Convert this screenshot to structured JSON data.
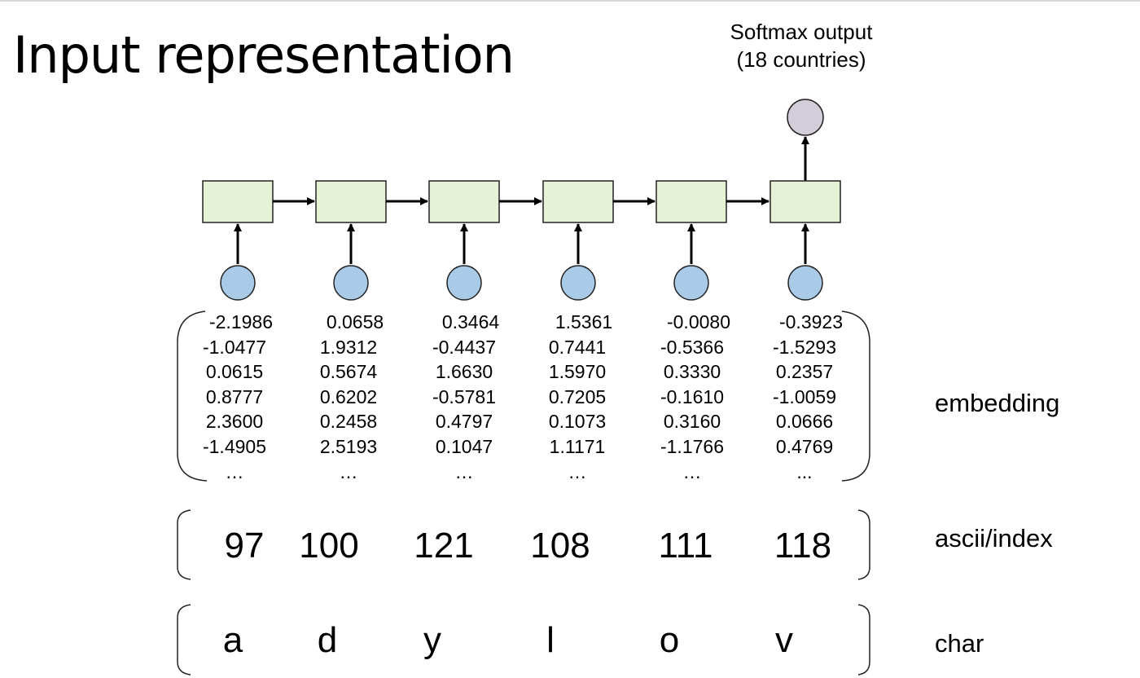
{
  "slide": {
    "title": "Input representation"
  },
  "output": {
    "label_line1": "Softmax output",
    "label_line2": "(18 countries)",
    "node_color": "#d2cdd9"
  },
  "colors": {
    "rnn_cell_fill": "#e5f2d6",
    "input_node_fill": "#a9cbe8"
  },
  "rows": {
    "embedding_label": "embedding",
    "ascii_label": "ascii/index",
    "char_label": "char"
  },
  "columns": [
    {
      "char": "a",
      "ascii": "97",
      "embedding": [
        "-2.1986",
        "-1.0477",
        "0.0615",
        "0.8777",
        "2.3600",
        "-1.4905",
        "…"
      ]
    },
    {
      "char": "d",
      "ascii": "100",
      "embedding": [
        "0.0658",
        "1.9312",
        "0.5674",
        "0.6202",
        "0.2458",
        "2.5193",
        "…"
      ]
    },
    {
      "char": "y",
      "ascii": "121",
      "embedding": [
        "0.3464",
        "-0.4437",
        "1.6630",
        "-0.5781",
        "0.4797",
        "0.1047",
        "…"
      ]
    },
    {
      "char": "l",
      "ascii": "108",
      "embedding": [
        "1.5361",
        "0.7441",
        "1.5970",
        "0.7205",
        "0.1073",
        "1.1171",
        "…"
      ]
    },
    {
      "char": "o",
      "ascii": "111",
      "embedding": [
        "-0.0080",
        "-0.5366",
        "0.3330",
        "-0.1610",
        "0.3160",
        "-1.1766",
        "…"
      ]
    },
    {
      "char": "v",
      "ascii": "118",
      "embedding": [
        "-0.3923",
        "-1.5293",
        "0.2357",
        "-1.0059",
        "0.0666",
        "0.4769",
        "..."
      ]
    }
  ]
}
